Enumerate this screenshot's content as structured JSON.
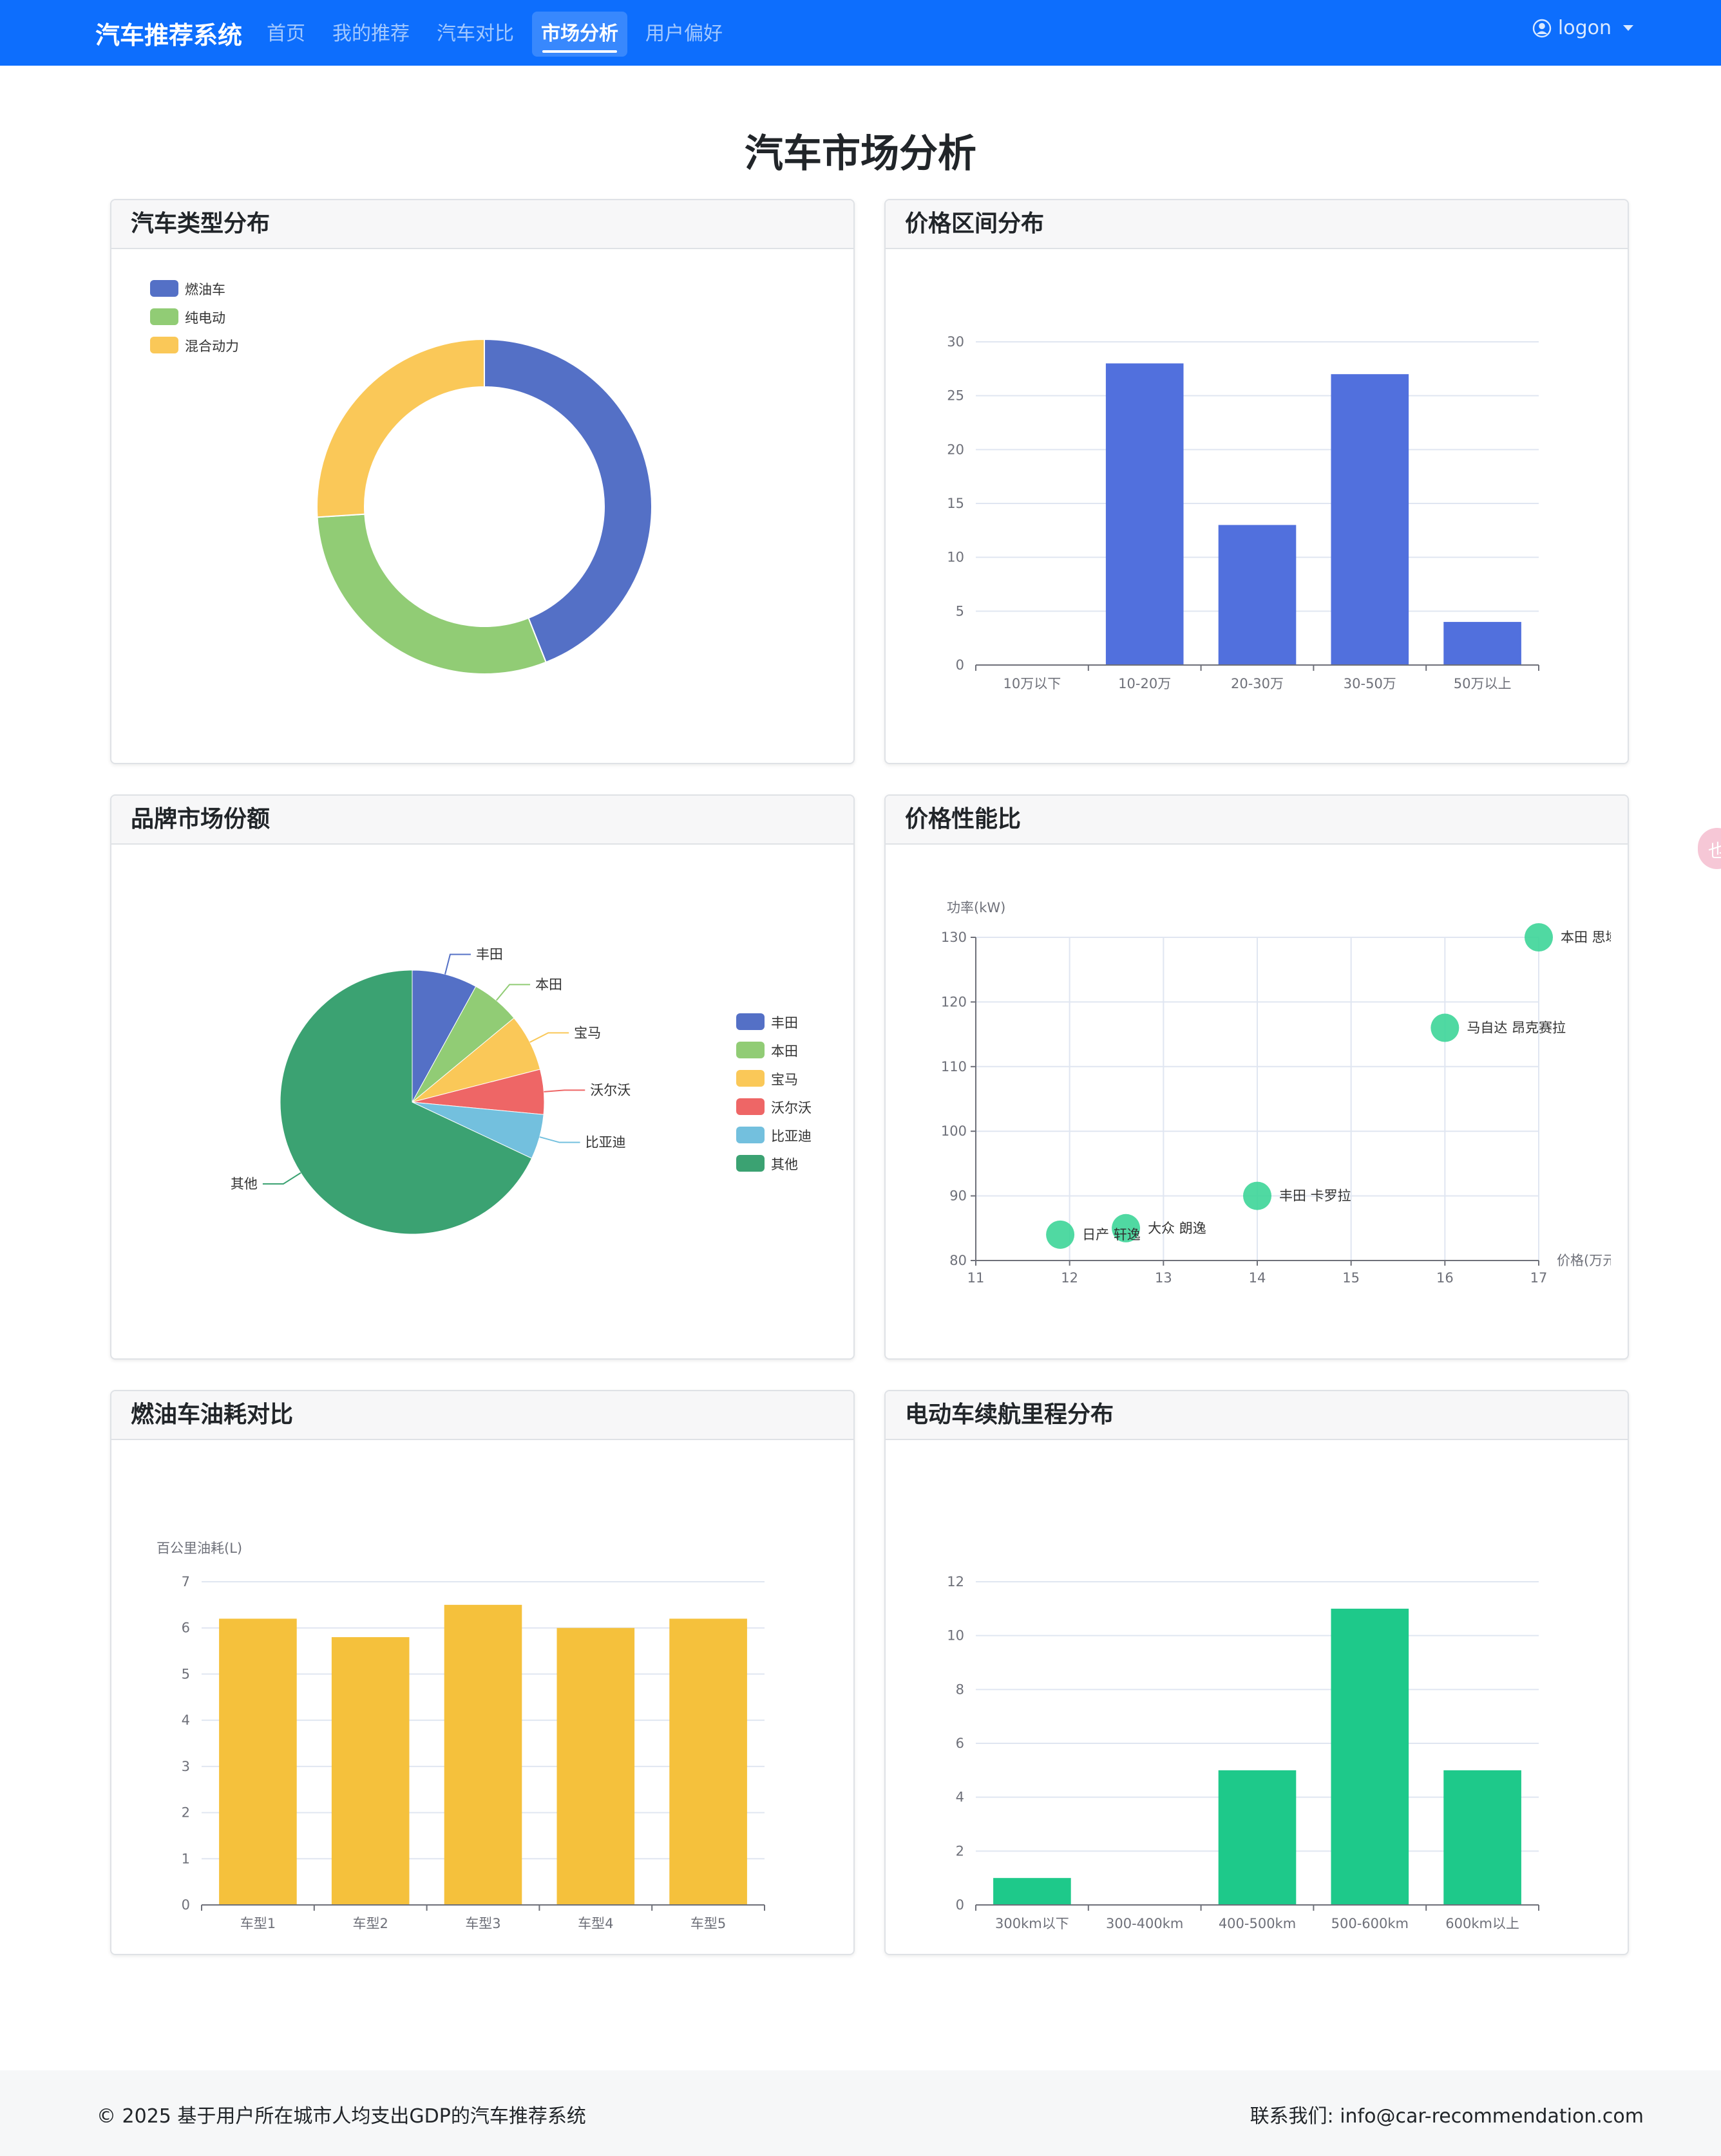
{
  "nav": {
    "brand": "汽车推荐系统",
    "items": [
      {
        "label": "首页",
        "active": false
      },
      {
        "label": "我的推荐",
        "active": false
      },
      {
        "label": "汽车对比",
        "active": false
      },
      {
        "label": "市场分析",
        "active": true
      },
      {
        "label": "用户偏好",
        "active": false
      }
    ],
    "user": "logon",
    "user_icon": "person-circle-icon"
  },
  "page_title": "汽车市场分析",
  "cards": [
    {
      "title": "汽车类型分布"
    },
    {
      "title": "价格区间分布"
    },
    {
      "title": "品牌市场份额"
    },
    {
      "title": "价格性能比"
    },
    {
      "title": "燃油车油耗对比"
    },
    {
      "title": "电动车续航里程分布"
    }
  ],
  "chart_data": [
    {
      "type": "pie",
      "donut": true,
      "legend": "top-left",
      "labels": [
        "燃油车",
        "纯电动",
        "混合动力"
      ],
      "values": [
        44,
        30,
        26
      ],
      "colors": [
        "#5470c6",
        "#91cc75",
        "#fac858"
      ]
    },
    {
      "type": "bar",
      "categories": [
        "10万以下",
        "10-20万",
        "20-30万",
        "30-50万",
        "50万以上"
      ],
      "values": [
        0,
        28,
        13,
        27,
        4
      ],
      "ylim": [
        0,
        30
      ],
      "yticks": [
        "0",
        "5",
        "10",
        "15",
        "20",
        "25",
        "30"
      ],
      "color": "#5170dd",
      "grid": true
    },
    {
      "type": "pie",
      "legend": "right",
      "labels": [
        "丰田",
        "本田",
        "宝马",
        "沃尔沃",
        "比亚迪",
        "其他"
      ],
      "values": [
        8,
        6,
        7,
        5.5,
        5.5,
        68
      ],
      "colors": [
        "#5470c6",
        "#91cc75",
        "#fac858",
        "#ee6666",
        "#73c0de",
        "#3ba272"
      ]
    },
    {
      "type": "scatter",
      "xlabel": "价格(万元)",
      "ylabel": "功率(kW)",
      "xlim": [
        11,
        17
      ],
      "ylim": [
        80,
        130
      ],
      "xticks": [
        "11",
        "12",
        "13",
        "14",
        "15",
        "16",
        "17"
      ],
      "yticks": [
        "80",
        "90",
        "100",
        "110",
        "120",
        "130"
      ],
      "color": "#3dd598",
      "grid": true,
      "points": [
        {
          "x": 11.9,
          "y": 84,
          "label": "日产 轩逸"
        },
        {
          "x": 12.6,
          "y": 85,
          "label": "大众 朗逸"
        },
        {
          "x": 14.0,
          "y": 90,
          "label": "丰田 卡罗拉"
        },
        {
          "x": 16.0,
          "y": 116,
          "label": "马自达 昂克赛拉"
        },
        {
          "x": 17.0,
          "y": 130,
          "label": "本田 思域"
        }
      ]
    },
    {
      "type": "bar",
      "ylabel": "百公里油耗(L)",
      "categories": [
        "车型1",
        "车型2",
        "车型3",
        "车型4",
        "车型5"
      ],
      "values": [
        6.2,
        5.8,
        6.5,
        6.0,
        6.2
      ],
      "ylim": [
        0,
        7
      ],
      "yticks": [
        "0",
        "1",
        "2",
        "3",
        "4",
        "5",
        "6",
        "7"
      ],
      "color": "#f5c13c",
      "grid": true
    },
    {
      "type": "bar",
      "categories": [
        "300km以下",
        "300-400km",
        "400-500km",
        "500-600km",
        "600km以上"
      ],
      "values": [
        1,
        0,
        5,
        11,
        5
      ],
      "ylim": [
        0,
        12
      ],
      "yticks": [
        "0",
        "2",
        "4",
        "6",
        "8",
        "10",
        "12"
      ],
      "color": "#1ec98a",
      "grid": true
    }
  ],
  "side_tab": {
    "text": "也"
  },
  "footer": {
    "left": "© 2025 基于用户所在城市人均支出GDP的汽车推荐系统",
    "right": "联系我们: info@car-recommendation.com"
  }
}
